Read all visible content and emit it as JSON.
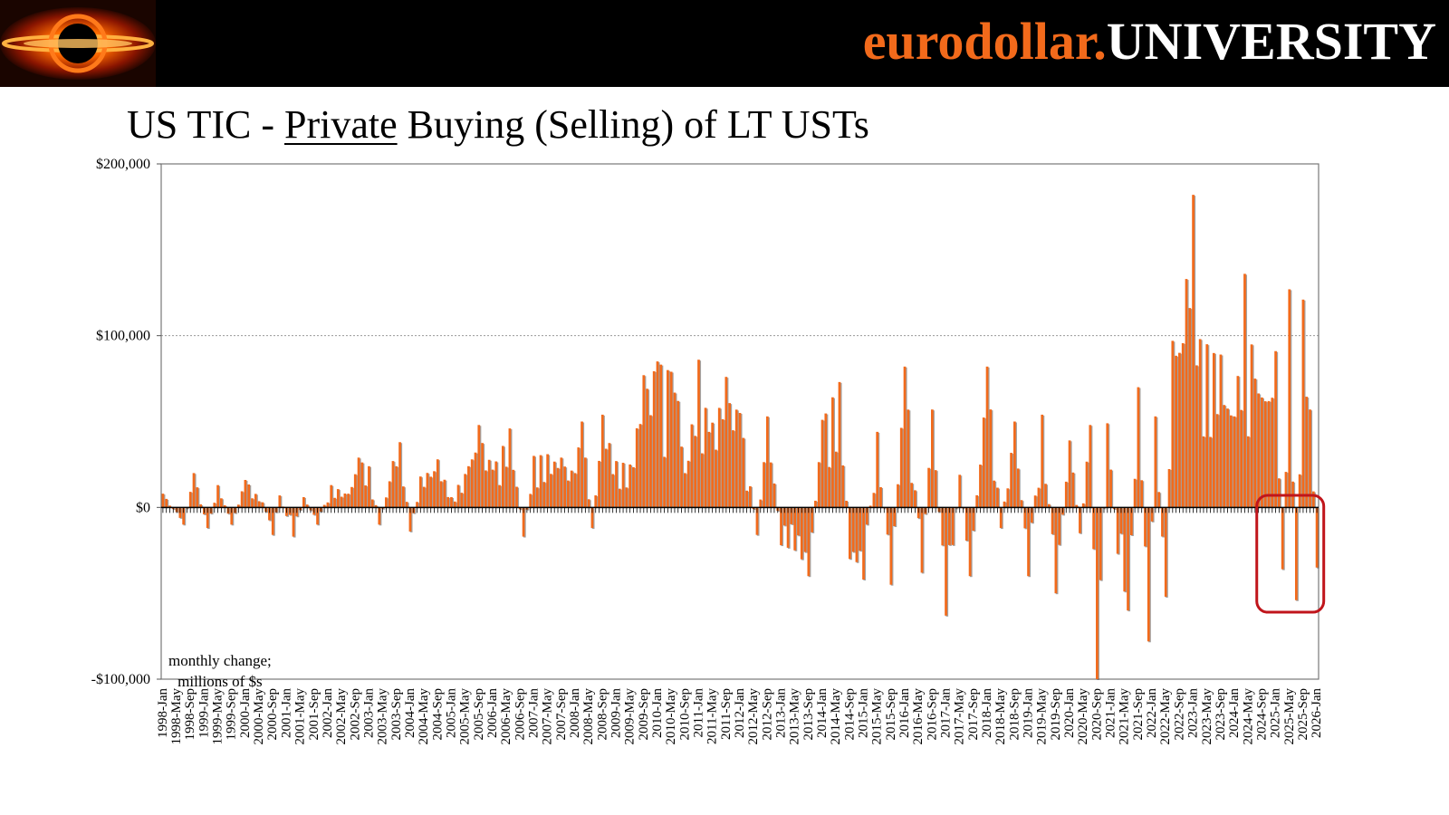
{
  "header": {
    "brand_part1": "eurodollar.",
    "brand_part2": "UNIVERSITY",
    "logo_icon": "eurodollar-logo-icon"
  },
  "colors": {
    "bar": "#f26a1b",
    "bar_shadow": "#555555",
    "highlight_box": "#c0151b",
    "brand_orange": "#f26a1b"
  },
  "chart_data": {
    "type": "bar",
    "title_part1": "US TIC - ",
    "title_underlined": "Private",
    "title_part2": " Buying (Selling) of LT USTs",
    "annotation_line1": "monthly change;",
    "annotation_line2": "millions of $s",
    "ylim": [
      -100000,
      200000
    ],
    "yticks": [
      200000,
      100000,
      0,
      -100000
    ],
    "ytick_labels": [
      "$200,000",
      "$100,000",
      "$0",
      "-$100,000"
    ],
    "grid": "horizontal dotted at $100,000",
    "xtick_labels": [
      "1998-Jan",
      "1998-May",
      "1998-Sep",
      "1999-Jan",
      "1999-May",
      "1999-Sep",
      "2000-Jan",
      "2000-May",
      "2000-Sep",
      "2001-Jan",
      "2001-May",
      "2001-Sep",
      "2002-Jan",
      "2002-May",
      "2002-Sep",
      "2003-Jan",
      "2003-May",
      "2003-Sep",
      "2004-Jan",
      "2004-May",
      "2004-Sep",
      "2005-Jan",
      "2005-May",
      "2005-Sep",
      "2006-Jan",
      "2006-May",
      "2006-Sep",
      "2007-Jan",
      "2007-May",
      "2007-Sep",
      "2008-Jan",
      "2008-May",
      "2008-Sep",
      "2009-Jan",
      "2009-May",
      "2009-Sep",
      "2010-Jan",
      "2010-May",
      "2010-Sep",
      "2011-Jan",
      "2011-May",
      "2011-Sep",
      "2012-Jan",
      "2012-May",
      "2012-Sep",
      "2013-Jan",
      "2013-May",
      "2013-Sep",
      "2014-Jan",
      "2014-May",
      "2014-Sep",
      "2015-Jan",
      "2015-May",
      "2015-Sep",
      "2016-Jan",
      "2016-May",
      "2016-Sep",
      "2017-Jan",
      "2017-May",
      "2017-Sep",
      "2018-Jan",
      "2018-May",
      "2018-Sep",
      "2019-Jan",
      "2019-May",
      "2019-Sep",
      "2020-Jan",
      "2020-May",
      "2020-Sep",
      "2021-Jan",
      "2021-May",
      "2021-Sep",
      "2022-Jan",
      "2022-May",
      "2022-Sep",
      "2023-Jan",
      "2023-May",
      "2023-Sep",
      "2024-Jan",
      "2024-May",
      "2024-Sep",
      "2025-Jan",
      "2025-May",
      "2025-Sep",
      "2026-Jan"
    ],
    "x_start": "1998-Jan",
    "x_end": "2026-Jan",
    "highlight_range": [
      "2024-Sep",
      "2026-Jan"
    ],
    "anchors": [
      [
        "1998-Jan",
        8000
      ],
      [
        "1998-Jul",
        -10000
      ],
      [
        "1998-Oct",
        20000
      ],
      [
        "1999-Feb",
        -12000
      ],
      [
        "1999-May",
        13000
      ],
      [
        "1999-Sep",
        -10000
      ],
      [
        "2000-Jan",
        16000
      ],
      [
        "2000-Jun",
        3000
      ],
      [
        "2000-Sep",
        -16000
      ],
      [
        "2000-Nov",
        7000
      ],
      [
        "2001-Mar",
        -17000
      ],
      [
        "2001-Jun",
        6000
      ],
      [
        "2001-Oct",
        -10000
      ],
      [
        "2002-Feb",
        13000
      ],
      [
        "2002-Jul",
        8000
      ],
      [
        "2002-Oct",
        29000
      ],
      [
        "2003-Jan",
        24000
      ],
      [
        "2003-Apr",
        -10000
      ],
      [
        "2003-Aug",
        27000
      ],
      [
        "2003-Oct",
        38000
      ],
      [
        "2004-Jan",
        -14000
      ],
      [
        "2004-Apr",
        18000
      ],
      [
        "2004-Sep",
        28000
      ],
      [
        "2005-Jan",
        6000
      ],
      [
        "2005-Jun",
        24000
      ],
      [
        "2005-Sep",
        48000
      ],
      [
        "2006-Jan",
        22000
      ],
      [
        "2006-Jun",
        46000
      ],
      [
        "2006-Oct",
        -17000
      ],
      [
        "2007-Jan",
        30000
      ],
      [
        "2007-May",
        31000
      ],
      [
        "2007-Sep",
        29000
      ],
      [
        "2008-Jan",
        20000
      ],
      [
        "2008-Mar",
        50000
      ],
      [
        "2008-Jun",
        -12000
      ],
      [
        "2008-Sep",
        54000
      ],
      [
        "2009-Jan",
        27000
      ],
      [
        "2009-May",
        25000
      ],
      [
        "2009-Sep",
        77000
      ],
      [
        "2010-Jan",
        85000
      ],
      [
        "2010-May",
        79000
      ],
      [
        "2010-Jul",
        62000
      ],
      [
        "2010-Sep",
        20000
      ],
      [
        "2011-Jan",
        86000
      ],
      [
        "2011-Apr",
        44000
      ],
      [
        "2011-Sep",
        76000
      ],
      [
        "2012-Jan",
        55000
      ],
      [
        "2012-Jun",
        -16000
      ],
      [
        "2012-Sep",
        53000
      ],
      [
        "2013-Jan",
        -22000
      ],
      [
        "2013-May",
        -25000
      ],
      [
        "2013-Sep",
        -40000
      ],
      [
        "2014-Jan",
        51000
      ],
      [
        "2014-Jun",
        73000
      ],
      [
        "2014-Sep",
        -30000
      ],
      [
        "2015-Jan",
        -42000
      ],
      [
        "2015-May",
        44000
      ],
      [
        "2015-Sep",
        -45000
      ],
      [
        "2016-Jan",
        82000
      ],
      [
        "2016-Jun",
        -38000
      ],
      [
        "2016-Sep",
        57000
      ],
      [
        "2017-Jan",
        -63000
      ],
      [
        "2017-May",
        19000
      ],
      [
        "2017-Aug",
        -40000
      ],
      [
        "2018-Jan",
        82000
      ],
      [
        "2018-May",
        -12000
      ],
      [
        "2018-Sep",
        50000
      ],
      [
        "2019-Jan",
        -40000
      ],
      [
        "2019-May",
        54000
      ],
      [
        "2019-Sep",
        -50000
      ],
      [
        "2020-Jan",
        39000
      ],
      [
        "2020-Apr",
        -15000
      ],
      [
        "2020-Jul",
        48000
      ],
      [
        "2020-Sep",
        -100000
      ],
      [
        "2020-Dec",
        49000
      ],
      [
        "2021-Mar",
        -27000
      ],
      [
        "2021-Jun",
        -60000
      ],
      [
        "2021-Sep",
        70000
      ],
      [
        "2021-Dec",
        -78000
      ],
      [
        "2022-Feb",
        53000
      ],
      [
        "2022-May",
        -52000
      ],
      [
        "2022-Jul",
        97000
      ],
      [
        "2022-Sep",
        90000
      ],
      [
        "2022-Nov",
        133000
      ],
      [
        "2023-Jan",
        182000
      ],
      [
        "2023-Mar",
        98000
      ],
      [
        "2023-May",
        95000
      ],
      [
        "2023-Sep",
        89000
      ],
      [
        "2024-Jan",
        53000
      ],
      [
        "2024-Apr",
        136000
      ],
      [
        "2024-Jul",
        75000
      ],
      [
        "2024-Sep",
        64000
      ],
      [
        "2025-Jan",
        91000
      ],
      [
        "2025-Mar",
        -36000
      ],
      [
        "2025-May",
        127000
      ],
      [
        "2025-Jul",
        -54000
      ],
      [
        "2025-Sep",
        121000
      ],
      [
        "2025-Nov",
        57000
      ],
      [
        "2026-Jan",
        -35000
      ]
    ]
  }
}
